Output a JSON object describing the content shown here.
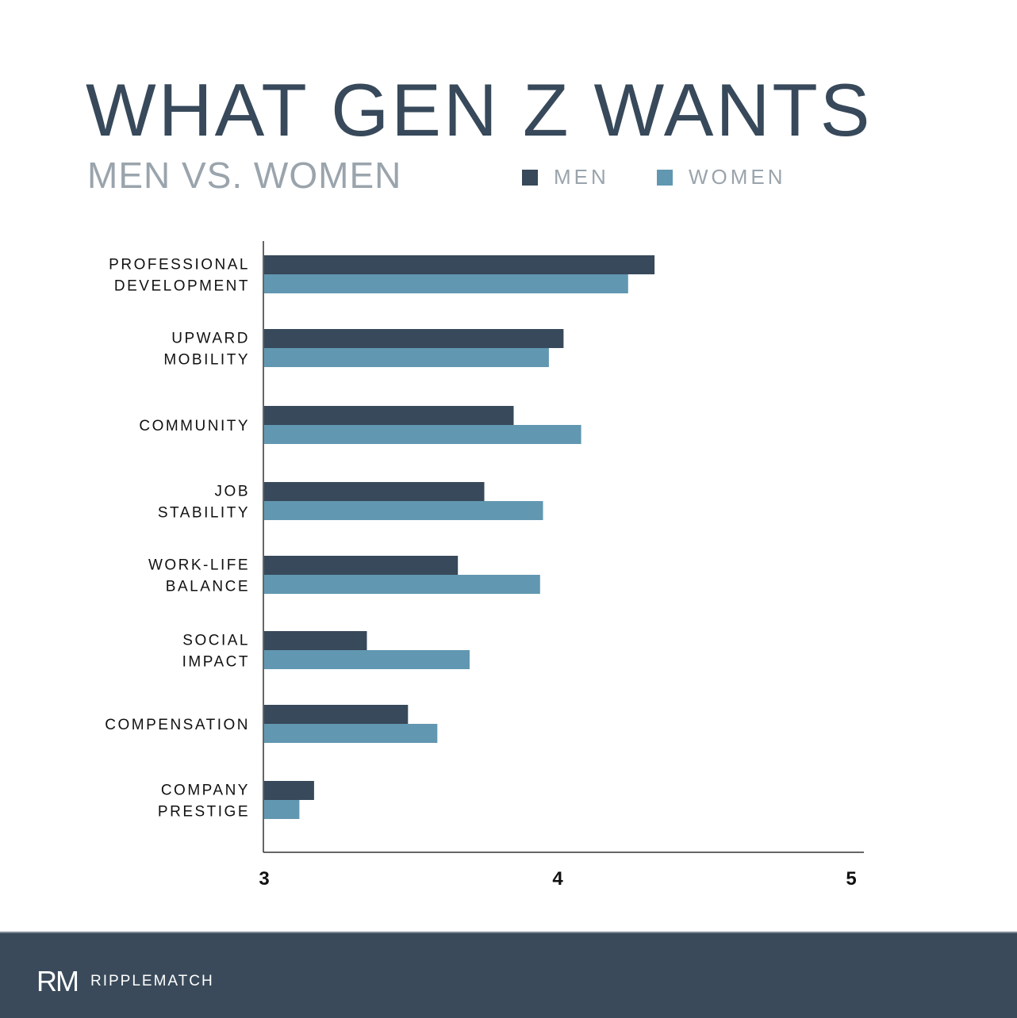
{
  "chart_data": {
    "type": "bar",
    "orientation": "horizontal",
    "title": "WHAT GEN Z WANTS",
    "subtitle": "MEN VS. WOMEN",
    "categories": [
      "PROFESSIONAL|DEVELOPMENT",
      "UPWARD|MOBILITY",
      "COMMUNITY",
      "JOB|STABILITY",
      "WORK-LIFE|BALANCE",
      "SOCIAL|IMPACT",
      "COMPENSATION",
      "COMPANY|PRESTIGE"
    ],
    "series": [
      {
        "name": "MEN",
        "color": "#37495a",
        "values": [
          4.33,
          4.02,
          3.85,
          3.75,
          3.66,
          3.35,
          3.49,
          3.17
        ]
      },
      {
        "name": "WOMEN",
        "color": "#6197b1",
        "values": [
          4.24,
          3.97,
          4.08,
          3.95,
          3.94,
          3.7,
          3.59,
          3.12
        ]
      }
    ],
    "xlim": [
      3,
      5
    ],
    "xticks": [
      "3",
      "4",
      "5"
    ],
    "grid": false,
    "legend": "top-right"
  },
  "brand": {
    "name": "RIPPLEMATCH",
    "mark": "RM"
  }
}
